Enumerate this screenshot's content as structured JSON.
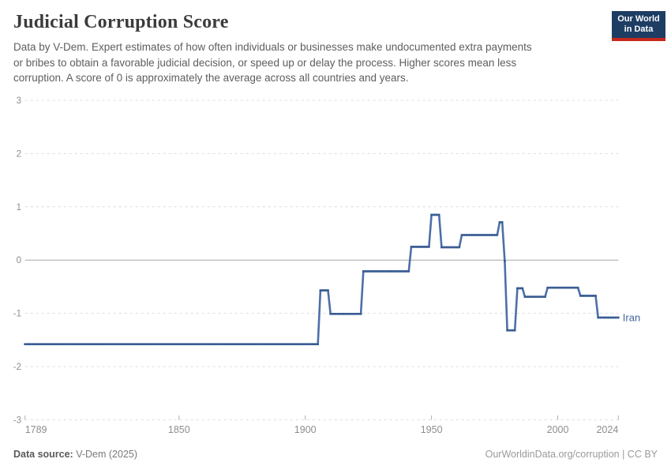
{
  "header": {
    "title": "Judicial Corruption Score",
    "subtitle_lines": [
      "Data by V-Dem. Expert estimates of how often individuals or businesses make undocumented extra payments",
      "or bribes to obtain a favorable judicial decision, or speed up or delay the process. Higher scores mean less",
      "corruption. A score of 0 is approximately the average across all countries and years."
    ],
    "logo": {
      "line1": "Our World",
      "line2": "in Data"
    }
  },
  "chart_data": {
    "type": "line",
    "title": "Judicial Corruption Score",
    "xlabel": "",
    "ylabel": "",
    "xlim": [
      1789,
      2024
    ],
    "ylim": [
      -3,
      3
    ],
    "x_ticks": [
      "1789",
      "1850",
      "1900",
      "1950",
      "2000",
      "2024"
    ],
    "x_tick_years": [
      1789,
      1850,
      1900,
      1950,
      2000,
      2024
    ],
    "y_ticks": [
      "3",
      "2",
      "1",
      "0",
      "-1",
      "-2",
      "-3"
    ],
    "y_tick_values": [
      3,
      2,
      1,
      0,
      -1,
      -2,
      -3
    ],
    "grid": "horizontal-dashed",
    "zero_line": "solid",
    "legend_position": "entity label at right end of line",
    "marker_style": "small square marker on every yearly value (beaded line)",
    "series": [
      {
        "name": "Iran",
        "color": "#4e6fa8",
        "marker_color": "#35598f",
        "step_segments": [
          {
            "from": 1789,
            "to": 1905,
            "value": -1.58
          },
          {
            "from": 1906,
            "to": 1909,
            "value": -0.57
          },
          {
            "from": 1910,
            "to": 1922,
            "value": -1.01
          },
          {
            "from": 1923,
            "to": 1941,
            "value": -0.21
          },
          {
            "from": 1942,
            "to": 1949,
            "value": 0.25
          },
          {
            "from": 1950,
            "to": 1953,
            "value": 0.85
          },
          {
            "from": 1954,
            "to": 1961,
            "value": 0.24
          },
          {
            "from": 1962,
            "to": 1976,
            "value": 0.47
          },
          {
            "from": 1977,
            "to": 1978,
            "value": 0.71
          },
          {
            "from": 1979,
            "to": 1979,
            "value": -0.02
          },
          {
            "from": 1980,
            "to": 1983,
            "value": -1.32
          },
          {
            "from": 1984,
            "to": 1986,
            "value": -0.53
          },
          {
            "from": 1987,
            "to": 1995,
            "value": -0.69
          },
          {
            "from": 1996,
            "to": 2008,
            "value": -0.52
          },
          {
            "from": 2009,
            "to": 2015,
            "value": -0.67
          },
          {
            "from": 2016,
            "to": 2024,
            "value": -1.08
          }
        ]
      }
    ]
  },
  "footer": {
    "source_label": "Data source:",
    "source_value": " V-Dem (2025)",
    "credit_link": "OurWorldinData.org/corruption",
    "credit_suffix": " | CC BY"
  },
  "colors": {
    "line": "#4e6fa8",
    "marker": "#35598f",
    "entity_label": "#41639c",
    "grid": "#dcdcdc",
    "zero_line": "#a8a8a8",
    "tick_mark": "#b0b0b0",
    "axis_text": "#8e8e8e",
    "title_text": "#3b3b3b",
    "subtitle_text": "#5e5e5e",
    "logo_bg": "#1d3d63",
    "logo_stripe": "#c5281c"
  }
}
